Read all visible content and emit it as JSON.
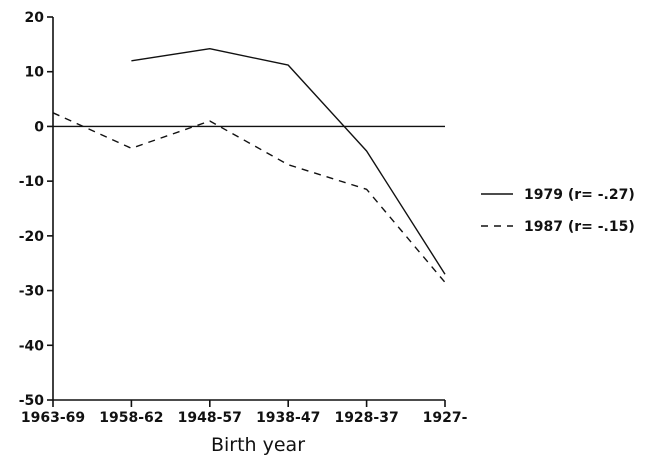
{
  "chart_data": {
    "type": "line",
    "title": "",
    "xlabel": "Birth year",
    "ylabel": "",
    "categories": [
      "1963-69",
      "1958-62",
      "1948-57",
      "1938-47",
      "1928-37",
      "1927-"
    ],
    "ylim": [
      -50,
      20
    ],
    "yticks": [
      20,
      10,
      0,
      -10,
      -20,
      -30,
      -40,
      -50
    ],
    "reference_line": 0,
    "grid": false,
    "legend_position": "right",
    "series": [
      {
        "name": "1979 (r= -.27)",
        "style": "solid",
        "values": [
          null,
          12,
          14.2,
          11.2,
          -4.5,
          -27
        ]
      },
      {
        "name": "1987 (r= -.15)",
        "style": "dashed",
        "values": [
          2.5,
          -4,
          1,
          -7,
          -11.5,
          -28.5
        ]
      }
    ]
  }
}
